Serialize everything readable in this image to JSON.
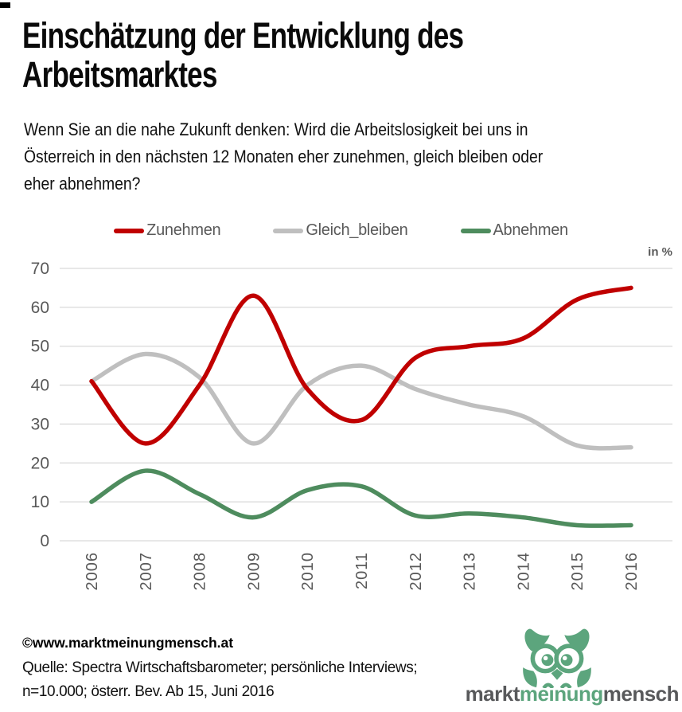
{
  "title": {
    "lines": [
      "Einschätzung der Entwicklung des",
      "Arbeitsmarktes"
    ]
  },
  "question": {
    "lines": [
      "Wenn Sie an die nahe Zukunft denken: Wird die Arbeitslosigkeit bei uns in",
      "Österreich in den nächsten 12 Monaten eher zunehmen, gleich bleiben oder",
      "eher abnehmen?"
    ]
  },
  "legend": {
    "items": [
      {
        "label": "Zunehmen",
        "color": "#C00000"
      },
      {
        "label": "Gleich_bleiben",
        "color": "#BFBFBF"
      },
      {
        "label": "Abnehmen",
        "color": "#4E8C5E"
      }
    ]
  },
  "unit_label": "in %",
  "chart_data": {
    "type": "line",
    "title": "Einschätzung der Entwicklung des Arbeitsmarktes",
    "categories": [
      "2006",
      "2007",
      "2008",
      "2009",
      "2010",
      "2011",
      "2012",
      "2013",
      "2014",
      "2015",
      "2016"
    ],
    "series": [
      {
        "name": "Zunehmen",
        "color": "#C00000",
        "values": [
          41,
          25,
          40,
          63,
          39,
          31,
          47,
          50,
          52,
          62,
          65
        ]
      },
      {
        "name": "Gleich_bleiben",
        "color": "#BFBFBF",
        "values": [
          41,
          48,
          42,
          25,
          40,
          45,
          39,
          35,
          32,
          24.5,
          24
        ]
      },
      {
        "name": "Abnehmen",
        "color": "#4E8C5E",
        "values": [
          10,
          18,
          12,
          6,
          13,
          14,
          6.5,
          7,
          6,
          4,
          4
        ]
      }
    ],
    "xlabel": "",
    "ylabel": "in %",
    "ylim": [
      0,
      70
    ],
    "ytick_step": 10,
    "grid": true,
    "smooth": true,
    "legend_position": "top",
    "axis_text_color": "#595959",
    "gridline_color": "#D9D9D9"
  },
  "footer": {
    "copyright": "©www.marktmeinungmensch.at",
    "source_lines": [
      "Quelle: Spectra Wirtschaftsbarometer; persönliche Interviews;",
      "n=10.000; österr. Bev. Ab 15, Juni 2016"
    ]
  },
  "logo": {
    "words": [
      {
        "text": "markt",
        "color": "#58595B"
      },
      {
        "text": "meinung",
        "color": "#5CA57D"
      },
      {
        "text": "mensch",
        "color": "#58595B"
      }
    ],
    "owl_color": "#5CA57D"
  }
}
